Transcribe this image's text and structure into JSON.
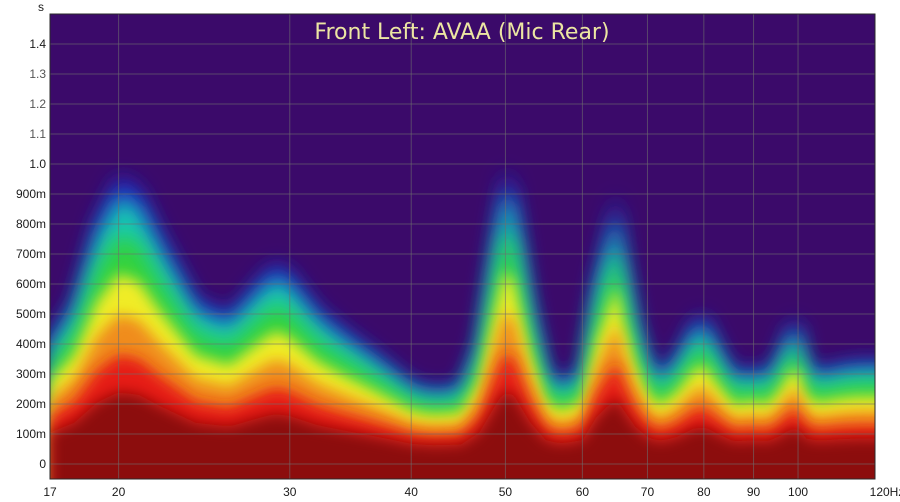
{
  "chart_data": {
    "type": "heatmap",
    "title": "Front Left: AVAA (Mic Rear)",
    "y_unit_label": "s",
    "x_unit_label": "Hz",
    "x_scale": "log",
    "xlim": [
      17,
      120
    ],
    "ylim": [
      -0.05,
      1.5
    ],
    "grid": true,
    "x_ticks": [
      {
        "value": 17,
        "label": "17"
      },
      {
        "value": 20,
        "label": "20"
      },
      {
        "value": 30,
        "label": "30"
      },
      {
        "value": 40,
        "label": "40"
      },
      {
        "value": 50,
        "label": "50"
      },
      {
        "value": 60,
        "label": "60"
      },
      {
        "value": 70,
        "label": "70"
      },
      {
        "value": 80,
        "label": "80"
      },
      {
        "value": 90,
        "label": "90"
      },
      {
        "value": 100,
        "label": "100"
      },
      {
        "value": 120,
        "label": "120Hz"
      }
    ],
    "y_ticks": [
      {
        "value": 0,
        "label": "0"
      },
      {
        "value": 0.1,
        "label": "100m"
      },
      {
        "value": 0.2,
        "label": "200m"
      },
      {
        "value": 0.3,
        "label": "300m"
      },
      {
        "value": 0.4,
        "label": "400m"
      },
      {
        "value": 0.5,
        "label": "500m"
      },
      {
        "value": 0.6,
        "label": "600m"
      },
      {
        "value": 0.7,
        "label": "700m"
      },
      {
        "value": 0.8,
        "label": "800m"
      },
      {
        "value": 0.9,
        "label": "900m"
      },
      {
        "value": 1.0,
        "label": "1.0"
      },
      {
        "value": 1.1,
        "label": "1.1"
      },
      {
        "value": 1.2,
        "label": "1.2"
      },
      {
        "value": 1.3,
        "label": "1.3"
      },
      {
        "value": 1.4,
        "label": "1.4"
      }
    ],
    "decay_profile": {
      "frequency": [
        17,
        18,
        19,
        20,
        21,
        22,
        24,
        26,
        28,
        29,
        30,
        32,
        34,
        36,
        38,
        40,
        42,
        45,
        47,
        49,
        50,
        51,
        53,
        55,
        57,
        60,
        62,
        64,
        65,
        66,
        68,
        70,
        72,
        75,
        78,
        80,
        83,
        86,
        90,
        93,
        96,
        98,
        100,
        102,
        105,
        110,
        115,
        120
      ],
      "decay_time": [
        0.42,
        0.55,
        0.82,
        0.96,
        0.92,
        0.78,
        0.55,
        0.5,
        0.62,
        0.67,
        0.64,
        0.52,
        0.45,
        0.39,
        0.33,
        0.27,
        0.25,
        0.26,
        0.42,
        0.82,
        0.98,
        0.92,
        0.56,
        0.32,
        0.27,
        0.32,
        0.62,
        0.8,
        0.9,
        0.74,
        0.5,
        0.36,
        0.3,
        0.36,
        0.47,
        0.5,
        0.39,
        0.3,
        0.32,
        0.3,
        0.38,
        0.46,
        0.48,
        0.34,
        0.31,
        0.33,
        0.34,
        0.34
      ]
    },
    "colorscale": [
      "#3b0a6a",
      "#1a2fc8",
      "#14c8b4",
      "#32d23c",
      "#f0ec28",
      "#f08c1e",
      "#e61e14",
      "#8c1008"
    ]
  }
}
